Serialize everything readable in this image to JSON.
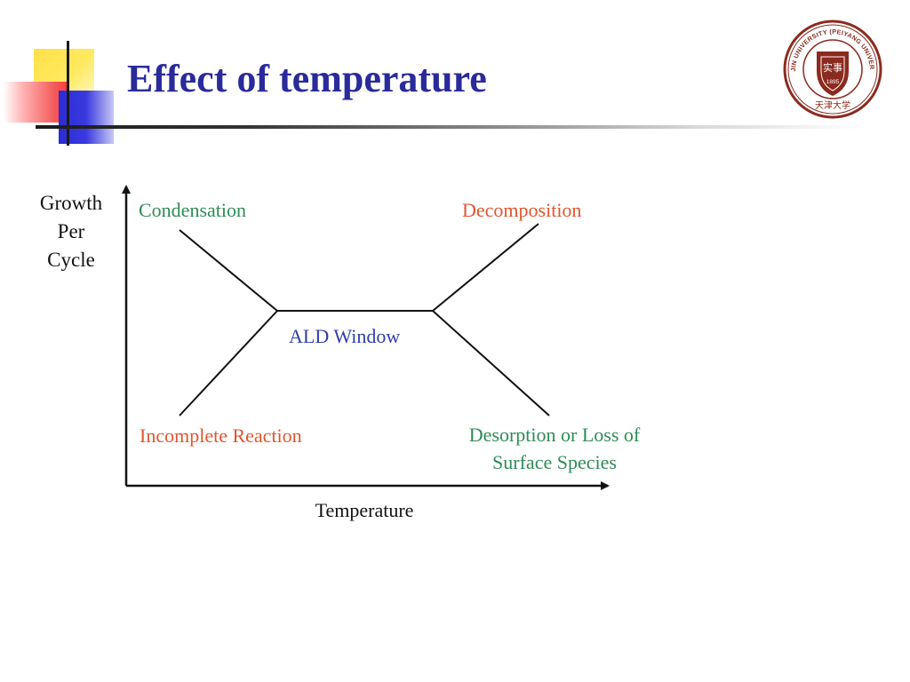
{
  "slide": {
    "title": "Effect of temperature"
  },
  "logo": {
    "icon": "university-seal-icon",
    "ring_text": "TIANJIN UNIVERSITY (PEIYANG UNIVERSITY)",
    "center_text": "1895",
    "bottom_text": "天津大学",
    "color": "#8b2a1e"
  },
  "diagram": {
    "y_axis_label": [
      "Growth",
      "Per",
      "Cycle"
    ],
    "x_axis_label": "Temperature",
    "regions": {
      "condensation": "Condensation",
      "decomposition": "Decomposition",
      "ald_window": "ALD Window",
      "incomplete_reaction": "Incomplete Reaction",
      "desorption": [
        "Desorption or Loss of",
        "Surface Species"
      ]
    },
    "colors": {
      "green": "#2e8b57",
      "orange": "#e0552e",
      "blue": "#2e3fa8",
      "black": "#111111"
    }
  }
}
